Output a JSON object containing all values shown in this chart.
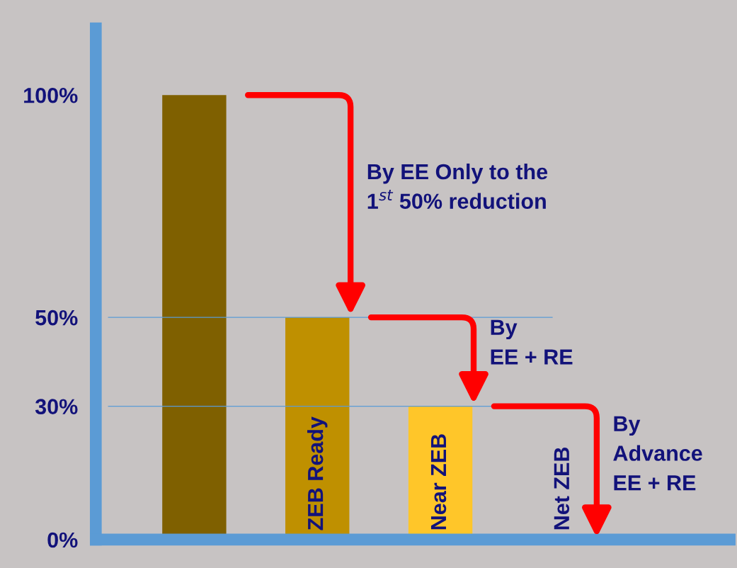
{
  "chart_data": {
    "type": "bar",
    "categories": [
      null,
      "ZEB Ready",
      "Near ZEB",
      "Net ZEB"
    ],
    "values": [
      100,
      50,
      30,
      0
    ],
    "colors": [
      "#7f6000",
      "#bf9000",
      "#ffc629",
      "#ffc629"
    ],
    "ylim": [
      0,
      115
    ],
    "yticks": [
      {
        "value": 0,
        "label": "0%"
      },
      {
        "value": 30,
        "label": "30%"
      },
      {
        "value": 50,
        "label": "50%"
      },
      {
        "value": 100,
        "label": "100%"
      }
    ],
    "ref_lines": [
      {
        "axis": "y",
        "value": 50,
        "label": null,
        "color": "#5b9bd5"
      },
      {
        "axis": "y",
        "value": 30,
        "label": null,
        "color": "#5b9bd5"
      }
    ],
    "annotations": [
      "By EE Only to the\n1$^{st}$ 50% reduction",
      "By\nEE + RE",
      "By\nAdvance\nEE + RE"
    ],
    "grid": false
  }
}
